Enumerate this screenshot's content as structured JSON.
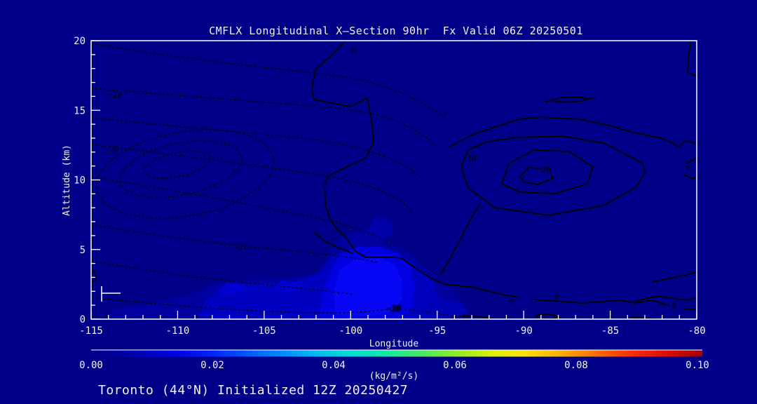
{
  "title": "CMFLX Longitudinal X—Section 90hr  Fx Valid 06Z 20250501",
  "footer": "Toronto (44°N) Initialized 12Z 20250427",
  "plot": {
    "xlabel": "Longitude",
    "ylabel": "Altitude (km)",
    "x_ticks": [
      -115,
      -110,
      -105,
      -100,
      -95,
      -90,
      -85,
      -80
    ],
    "y_ticks": [
      0,
      5,
      10,
      15,
      20
    ],
    "x_minor_step": 1,
    "y_minor_step": 1,
    "contour_labels": [
      {
        "text": "-10",
        "lon": -113.6,
        "alt": 16.1
      },
      {
        "text": "-20",
        "lon": -113.8,
        "alt": 12.2
      },
      {
        "text": "-10",
        "lon": -106.3,
        "alt": 5.2
      },
      {
        "text": "-10",
        "lon": -97.5,
        "alt": 0.75
      },
      {
        "text": "0",
        "lon": -99.8,
        "alt": 19.3
      },
      {
        "text": "0",
        "lon": -101.5,
        "alt": 9.7
      },
      {
        "text": "10",
        "lon": -93.0,
        "alt": 11.5
      },
      {
        "text": "20",
        "lon": -88.7,
        "alt": 10.7
      },
      {
        "text": "0",
        "lon": -80.5,
        "alt": 10.8
      },
      {
        "text": "0",
        "lon": -90.7,
        "alt": 1.2
      },
      {
        "text": "0",
        "lon": -88.1,
        "alt": 1.6
      },
      {
        "text": "0",
        "lon": -81.3,
        "alt": 0.9
      }
    ]
  },
  "colorbar": {
    "tick_labels": [
      "0.00",
      "0.02",
      "0.04",
      "0.06",
      "0.08",
      "0.10"
    ],
    "units": "(kg/m²/s)",
    "range": [
      0.0,
      0.1
    ]
  },
  "colors": {
    "background": "#000089",
    "axis": "#ffffff",
    "contour": "#000000",
    "shade_dim": "#00009e",
    "shade_mid": "#0000c0",
    "shade_bright": "#0000e0",
    "shade_core": "#0707f5",
    "cbar_start": "#000089",
    "cbar_end": "#a00000"
  },
  "chart_data": {
    "type": "heatmap",
    "title": "CMFLX Longitudinal X—Section 90hr  Fx Valid 06Z 20250501",
    "subtitle": "Toronto (44°N) Initialized 12Z 20250427",
    "xlabel": "Longitude",
    "ylabel": "Altitude (km)",
    "xlim": [
      -115,
      -80
    ],
    "ylim": [
      0,
      20
    ],
    "grid": false,
    "legend": "horizontal colorbar below x-axis, 0.00–0.10 (kg/m²/s), blue→cyan→green→yellow→orange→red",
    "fill_field": {
      "variable": "CMFLX",
      "units": "kg/m²/s",
      "range": [
        0.0,
        0.1
      ],
      "shaded_feature": "low-level plume of positive cloud mass flux between lon -108 and -93 below ~6 km, brightest core near lon -98.5 at 0–4.5 km with values ~0.015–0.02"
    },
    "line_contours": {
      "solid_labeled_levels": [
        0,
        10,
        20
      ],
      "dotted_labeled_levels": [
        -20,
        -10
      ],
      "positive_center": {
        "lon": -88.5,
        "alt_km": 10.5,
        "innermost_label": 20
      },
      "negative_center": {
        "lon": -110.0,
        "alt_km": 10.8,
        "innermost_label": -20
      },
      "notes": "dotted (negative) contour spiral occupies western half; solid (positive) nested contours centered near lon -88.5, 10.5 km; solid 0-line meanders from plot top near lon -99 down to ~1 km and eastward along low levels"
    }
  }
}
